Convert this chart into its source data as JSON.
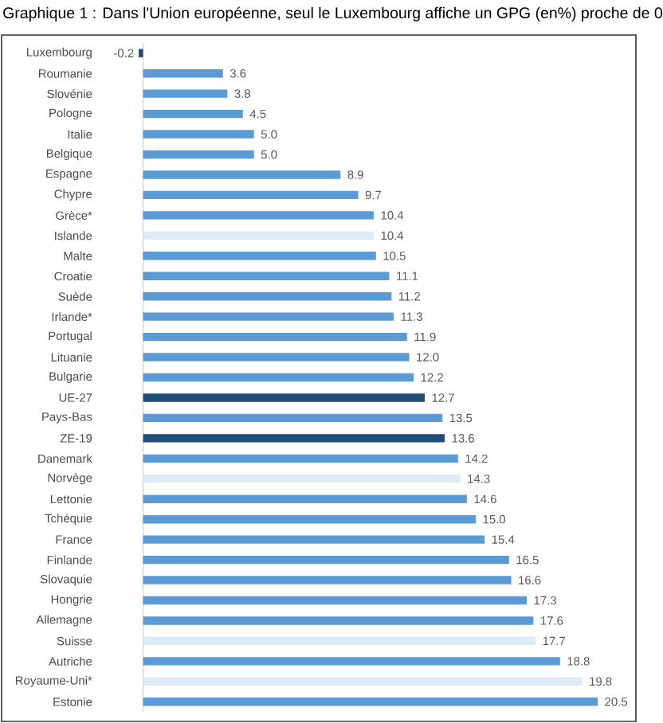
{
  "chart_data": {
    "type": "bar",
    "orientation": "horizontal",
    "title": "Graphique 1 : Dans l'Union européenne, seul le Luxembourg affiche un GPG (en%) proche de 0",
    "categories": [
      "Luxembourg",
      "Roumanie",
      "Slovénie",
      "Pologne",
      "Italie",
      "Belgique",
      "Espagne",
      "Chypre",
      "Grèce*",
      "Islande",
      "Malte",
      "Croatie",
      "Suède",
      "Irlande*",
      "Portugal",
      "Lituanie",
      "Bulgarie",
      "UE-27",
      "Pays-Bas",
      "ZE-19",
      "Danemark",
      "Norvège",
      "Lettonie",
      "Tchéquie",
      "France",
      "Finlande",
      "Slovaquie",
      "Hongrie",
      "Allemagne",
      "Suisse",
      "Autriche",
      "Royaume-Uni*",
      "Estonie"
    ],
    "values": [
      -0.2,
      3.6,
      3.8,
      4.5,
      5.0,
      5.0,
      8.9,
      9.7,
      10.4,
      10.4,
      10.5,
      11.1,
      11.2,
      11.3,
      11.9,
      12.0,
      12.2,
      12.7,
      13.5,
      13.6,
      14.2,
      14.3,
      14.6,
      15.0,
      15.4,
      16.5,
      16.6,
      17.3,
      17.6,
      17.7,
      18.8,
      19.8,
      20.5
    ],
    "value_labels": [
      "-0.2",
      "3.6",
      "3.8",
      "4.5",
      "5.0",
      "5.0",
      "8.9",
      "9.7",
      "10.4",
      "10.4",
      "10.5",
      "11.1",
      "11.2",
      "11.3",
      "11.9",
      "12.0",
      "12.2",
      "12.7",
      "13.5",
      "13.6",
      "14.2",
      "14.3",
      "14.6",
      "15.0",
      "15.4",
      "16.5",
      "16.6",
      "17.3",
      "17.6",
      "17.7",
      "18.8",
      "19.8",
      "20.5"
    ],
    "colors": [
      "#1f4e79",
      "#5b9bd5",
      "#5b9bd5",
      "#5b9bd5",
      "#5b9bd5",
      "#5b9bd5",
      "#5b9bd5",
      "#5b9bd5",
      "#5b9bd5",
      "#deebf7",
      "#5b9bd5",
      "#5b9bd5",
      "#5b9bd5",
      "#5b9bd5",
      "#5b9bd5",
      "#5b9bd5",
      "#5b9bd5",
      "#1f4e79",
      "#5b9bd5",
      "#1f4e79",
      "#5b9bd5",
      "#deebf7",
      "#5b9bd5",
      "#5b9bd5",
      "#5b9bd5",
      "#5b9bd5",
      "#5b9bd5",
      "#5b9bd5",
      "#5b9bd5",
      "#deebf7",
      "#5b9bd5",
      "#deebf7",
      "#5b9bd5"
    ]
  }
}
